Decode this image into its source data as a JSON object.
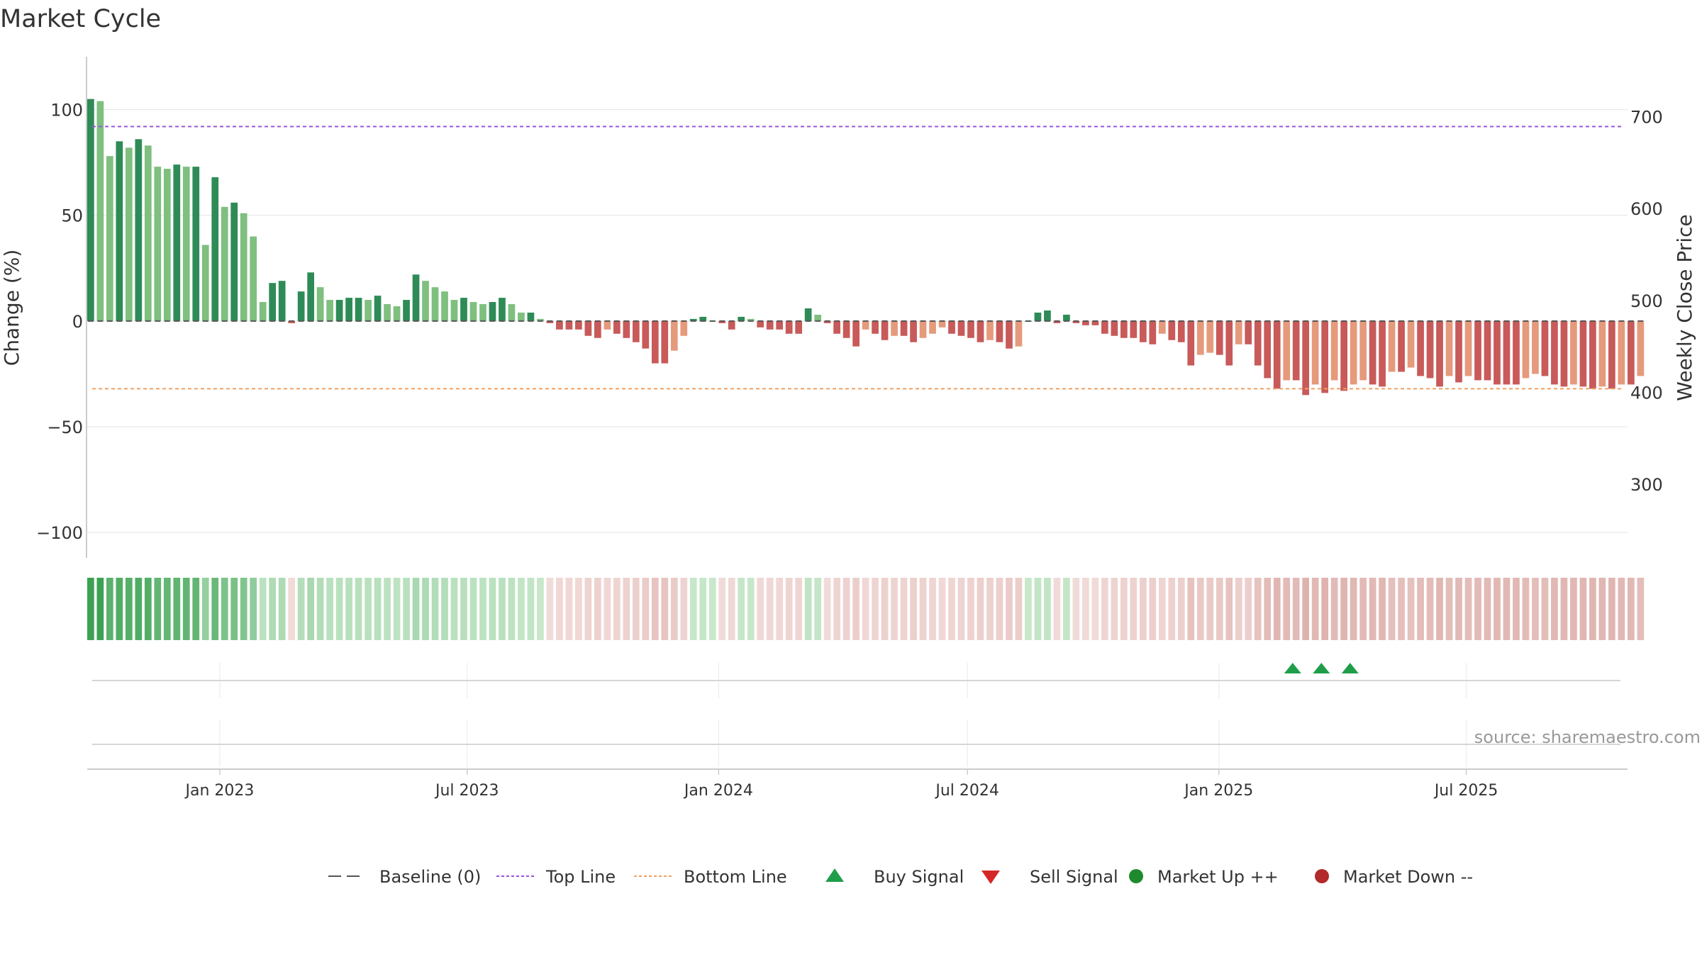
{
  "chart_data": {
    "type": "bar",
    "title": "Market Cycle",
    "ylabel_left": "Change (%)",
    "ylabel_right": "Weekly Close Price",
    "source_text": "source: sharemaestro.com",
    "ylim_left": [
      -112,
      125
    ],
    "ylim_right": [
      220,
      765
    ],
    "yticks_left": [
      100,
      50,
      0,
      -50,
      -100
    ],
    "yticks_left_labels": [
      "100",
      "50",
      "0",
      "−50",
      "−100"
    ],
    "yticks_right": [
      700,
      600,
      500,
      400,
      300
    ],
    "x_start": "2022-09-26",
    "x_end": "2025-10-27",
    "x_ticks": [
      {
        "date": "2023-01-01",
        "label": "Jan 2023"
      },
      {
        "date": "2023-07-01",
        "label": "Jul 2023"
      },
      {
        "date": "2024-01-01",
        "label": "Jan 2024"
      },
      {
        "date": "2024-07-01",
        "label": "Jul 2024"
      },
      {
        "date": "2025-01-01",
        "label": "Jan 2025"
      },
      {
        "date": "2025-07-01",
        "label": "Jul 2025"
      }
    ],
    "top_line": 92,
    "bottom_line": -32,
    "first_bar_date": "2022-09-26",
    "bar_interval_days": 7,
    "bar_values": [
      105,
      104,
      78,
      85,
      82,
      86,
      83,
      73,
      72,
      74,
      73,
      73,
      36,
      68,
      54,
      56,
      51,
      40,
      9,
      18,
      19,
      -1,
      14,
      23,
      16,
      10,
      10,
      11,
      11,
      10,
      12,
      8,
      7,
      10,
      22,
      19,
      16,
      14,
      10,
      11,
      9,
      8,
      9,
      11,
      8,
      4,
      4,
      1,
      -1,
      -4,
      -4,
      -4,
      -7,
      -8,
      -4,
      -6,
      -8,
      -10,
      -13,
      -20,
      -20,
      -14,
      -7,
      1,
      2,
      0,
      -1,
      -4,
      2,
      1,
      -3,
      -4,
      -4,
      -6,
      -6,
      6,
      3,
      -1,
      -6,
      -8,
      -12,
      -4,
      -6,
      -9,
      -7,
      -7,
      -10,
      -8,
      -6,
      -3,
      -6,
      -7,
      -8,
      -10,
      -9,
      -10,
      -13,
      -12,
      0,
      4,
      5,
      -1,
      3,
      -1,
      -2,
      -2,
      -6,
      -7,
      -8,
      -8,
      -10,
      -11,
      -6,
      -9,
      -10,
      -21,
      -16,
      -15,
      -16,
      -21,
      -11,
      -11,
      -21,
      -27,
      -32,
      -28,
      -28,
      -35,
      -30,
      -34,
      -28,
      -33,
      -30,
      -28,
      -30,
      -31,
      -24,
      -24,
      -22,
      -26,
      -27,
      -31,
      -26,
      -29,
      -26,
      -28,
      -28,
      -30,
      -30,
      -30,
      -27,
      -25,
      -26,
      -30,
      -31,
      -30,
      -31,
      -32,
      -31,
      -32,
      -30,
      -30,
      -26
    ],
    "signal_buy_dates": [
      "2025-02-24",
      "2025-03-17",
      "2025-04-07"
    ],
    "signal_sell_dates": [],
    "legend": [
      {
        "label": "Baseline (0)",
        "marker": "dash"
      },
      {
        "label": "Top Line",
        "marker": "dotted"
      },
      {
        "label": "Bottom Line",
        "marker": "dotted"
      },
      {
        "label": "Buy Signal",
        "marker": "triangle-up"
      },
      {
        "label": "Sell Signal",
        "marker": "triangle-down"
      },
      {
        "label": "Market Up ++",
        "marker": "circle"
      },
      {
        "label": "Market Down --",
        "marker": "circle"
      }
    ],
    "legend_placement": "bottom-center",
    "colors": {
      "up_dark": "#2e8b57",
      "up_light": "#7fbf7f",
      "down_dark": "#c85a5a",
      "down_light": "#e59a7c",
      "top_line": "#9955dd",
      "bottom_line": "#f0a060",
      "baseline": "#555555",
      "buy": "#1f9e4a",
      "sell": "#d62728",
      "market_up": "#1e8a2e",
      "market_down": "#b22a2a",
      "grid": "#e8e8e8",
      "axis": "#bbbbbb"
    }
  }
}
